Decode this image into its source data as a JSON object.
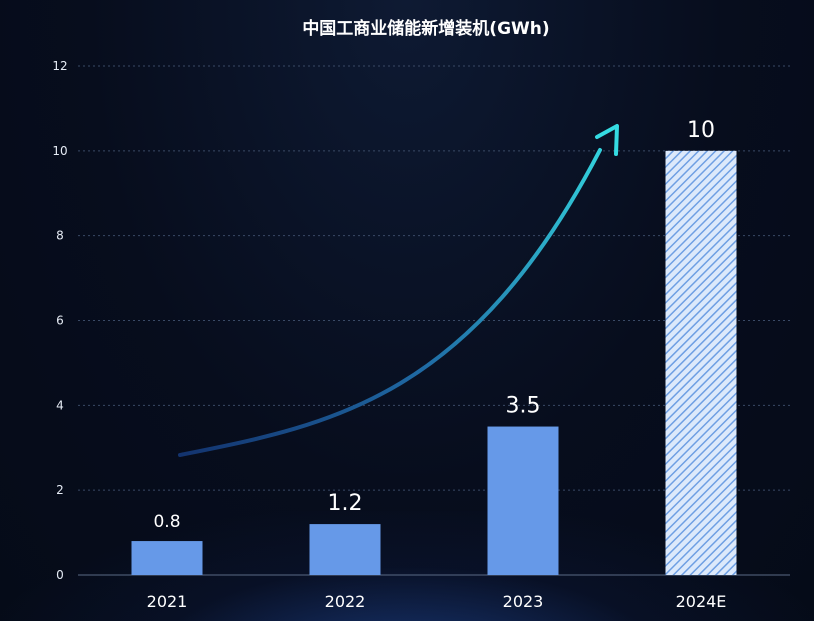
{
  "chart_data": {
    "type": "bar",
    "title": "中国工商业储能新增装机(GWh)",
    "categories": [
      "2021",
      "2022",
      "2023",
      "2024E"
    ],
    "values": [
      0.8,
      1.2,
      3.5,
      10
    ],
    "value_labels": [
      "0.8",
      "1.2",
      "3.5",
      "10"
    ],
    "projected": [
      false,
      false,
      false,
      true
    ],
    "ylim": [
      0,
      12
    ],
    "yticks": [
      0,
      2,
      4,
      6,
      8,
      10,
      12
    ],
    "grid": true,
    "legend": "none",
    "colors": {
      "bar": "#6699e8",
      "projected_bar_stripe": "#9cc0f5",
      "arrow": "#2fd3dc",
      "grid": "#3a4a66"
    }
  }
}
